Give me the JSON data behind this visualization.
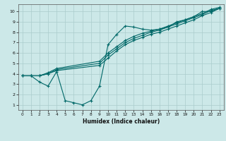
{
  "title": "",
  "xlabel": "Humidex (Indice chaleur)",
  "ylabel": "",
  "bg_color": "#cce8e8",
  "grid_color": "#aacccc",
  "line_color": "#006868",
  "xlim": [
    -0.5,
    23.5
  ],
  "ylim": [
    0.5,
    10.7
  ],
  "xticks": [
    0,
    1,
    2,
    3,
    4,
    5,
    6,
    7,
    8,
    9,
    10,
    11,
    12,
    13,
    14,
    15,
    16,
    17,
    18,
    19,
    20,
    21,
    22,
    23
  ],
  "yticks": [
    1,
    2,
    3,
    4,
    5,
    6,
    7,
    8,
    9,
    10
  ],
  "line1_x": [
    0,
    1,
    2,
    3,
    4,
    5,
    6,
    7,
    8,
    9,
    10,
    11,
    12,
    13,
    14,
    15,
    16,
    17,
    18,
    19,
    20,
    21,
    22,
    23
  ],
  "line1_y": [
    3.8,
    3.8,
    3.2,
    2.8,
    4.2,
    1.4,
    1.2,
    1.0,
    1.4,
    2.8,
    6.8,
    7.8,
    8.6,
    8.5,
    8.3,
    8.2,
    8.3,
    8.5,
    9.0,
    9.2,
    9.5,
    10.0,
    10.0,
    10.3
  ],
  "line2_x": [
    0,
    1,
    2,
    3,
    4,
    9,
    10,
    11,
    12,
    13,
    14,
    15,
    16,
    17,
    18,
    19,
    20,
    21,
    22,
    23
  ],
  "line2_y": [
    3.8,
    3.8,
    3.8,
    4.0,
    4.3,
    4.8,
    5.5,
    6.2,
    6.8,
    7.2,
    7.5,
    7.8,
    8.0,
    8.3,
    8.6,
    8.9,
    9.2,
    9.6,
    9.9,
    10.3
  ],
  "line3_x": [
    0,
    1,
    2,
    3,
    4,
    9,
    10,
    11,
    12,
    13,
    14,
    15,
    16,
    17,
    18,
    19,
    20,
    21,
    22,
    23
  ],
  "line3_y": [
    3.8,
    3.8,
    3.8,
    4.0,
    4.4,
    5.0,
    5.8,
    6.4,
    7.0,
    7.4,
    7.7,
    8.0,
    8.2,
    8.5,
    8.8,
    9.1,
    9.4,
    9.7,
    10.1,
    10.3
  ],
  "line4_x": [
    0,
    1,
    2,
    3,
    4,
    9,
    10,
    11,
    12,
    13,
    14,
    15,
    16,
    17,
    18,
    19,
    20,
    21,
    22,
    23
  ],
  "line4_y": [
    3.8,
    3.8,
    3.8,
    4.1,
    4.5,
    5.2,
    6.0,
    6.6,
    7.2,
    7.6,
    7.9,
    8.1,
    8.3,
    8.6,
    8.9,
    9.2,
    9.5,
    9.8,
    10.2,
    10.4
  ]
}
